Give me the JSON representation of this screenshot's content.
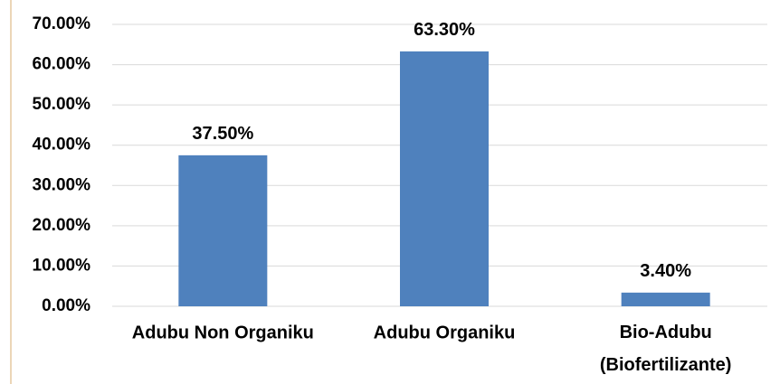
{
  "chart_data": {
    "type": "bar",
    "categories": [
      "Adubu Non Organiku",
      "Adubu Organiku",
      "Bio-Adubu (Biofertilizante)"
    ],
    "values": [
      37.5,
      63.3,
      3.4
    ],
    "value_labels": [
      "37.50%",
      "63.30%",
      "3.40%"
    ],
    "color": "#4f81bd",
    "ylim": [
      0,
      70
    ],
    "yticks": [
      {
        "value": 0,
        "label": "0.00%"
      },
      {
        "value": 10,
        "label": "10.00%"
      },
      {
        "value": 20,
        "label": "20.00%"
      },
      {
        "value": 30,
        "label": "30.00%"
      },
      {
        "value": 40,
        "label": "40.00%"
      },
      {
        "value": 50,
        "label": "50.00%"
      },
      {
        "value": 60,
        "label": "60.00%"
      },
      {
        "value": 70,
        "label": "70.00%"
      }
    ],
    "grid": true
  }
}
